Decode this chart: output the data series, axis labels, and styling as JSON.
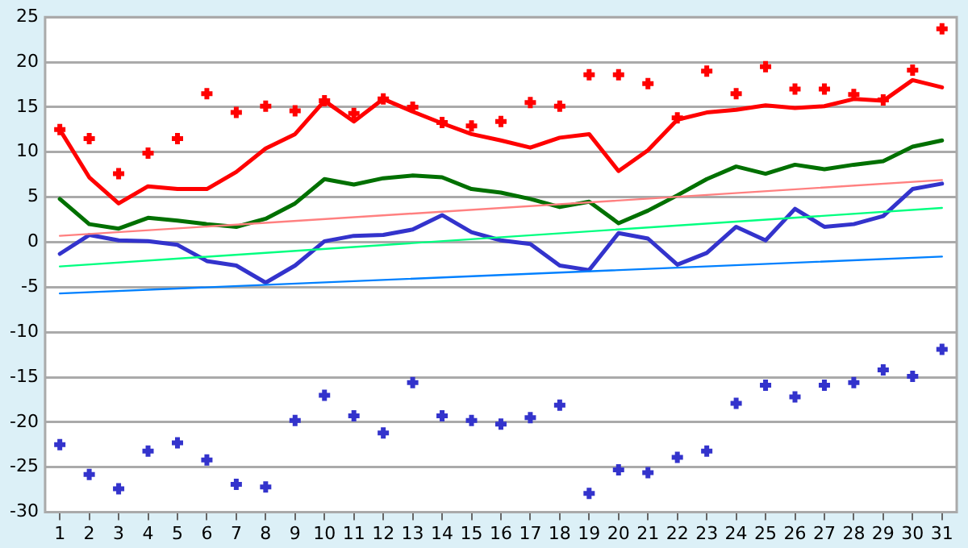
{
  "chart_data": {
    "type": "line",
    "x": [
      1,
      2,
      3,
      4,
      5,
      6,
      7,
      8,
      9,
      10,
      11,
      12,
      13,
      14,
      15,
      16,
      17,
      18,
      19,
      20,
      21,
      22,
      23,
      24,
      25,
      26,
      27,
      28,
      29,
      30,
      31
    ],
    "xlim": [
      0.5,
      31.5
    ],
    "xticks": [
      1,
      2,
      3,
      4,
      5,
      6,
      7,
      8,
      9,
      10,
      11,
      12,
      13,
      14,
      15,
      16,
      17,
      18,
      19,
      20,
      21,
      22,
      23,
      24,
      25,
      26,
      27,
      28,
      29,
      30,
      31
    ],
    "ylim": [
      -30,
      25
    ],
    "yticks": [
      -30,
      -25,
      -20,
      -15,
      -10,
      -5,
      0,
      5,
      10,
      15,
      20,
      25
    ],
    "grid": "y",
    "legend": false,
    "marker": "none",
    "line_style": "solid",
    "series": [
      {
        "type": "scatter",
        "marker": "cross",
        "color": "#ff0000",
        "values": [
          12.5,
          11.5,
          7.6,
          9.9,
          11.5,
          16.5,
          14.4,
          15.1,
          14.6,
          15.7,
          14.3,
          15.9,
          15.0,
          13.3,
          12.9,
          13.4,
          15.5,
          15.1,
          18.6,
          18.6,
          17.6,
          13.8,
          19.0,
          16.5,
          19.5,
          17.0,
          17.0,
          16.4,
          15.8,
          19.1,
          23.7
        ]
      },
      {
        "type": "scatter",
        "marker": "cross",
        "color": "#3333cc",
        "values": [
          -22.5,
          -25.8,
          -27.4,
          -23.2,
          -22.3,
          -24.2,
          -26.9,
          -27.2,
          -19.8,
          -17.0,
          -19.3,
          -21.2,
          -15.6,
          -19.3,
          -19.8,
          -20.2,
          -19.5,
          -18.1,
          -27.9,
          -25.3,
          -25.6,
          -23.9,
          -23.2,
          -17.9,
          -15.9,
          -17.2,
          -15.9,
          -15.6,
          -14.2,
          -14.9,
          -11.9
        ]
      },
      {
        "type": "line",
        "color": "#ff8080",
        "values": [
          0.7,
          null,
          null,
          null,
          null,
          null,
          null,
          null,
          null,
          null,
          null,
          null,
          null,
          null,
          null,
          null,
          null,
          null,
          null,
          null,
          null,
          null,
          null,
          null,
          null,
          null,
          null,
          null,
          null,
          null,
          6.9
        ]
      },
      {
        "type": "line",
        "color": "#00ff80",
        "values": [
          -2.7,
          null,
          null,
          null,
          null,
          null,
          null,
          null,
          null,
          null,
          null,
          null,
          null,
          null,
          null,
          null,
          null,
          null,
          null,
          null,
          null,
          null,
          null,
          null,
          null,
          null,
          null,
          null,
          null,
          null,
          3.8
        ]
      },
      {
        "type": "line",
        "color": "#0080ff",
        "values": [
          -5.7,
          null,
          null,
          null,
          null,
          null,
          null,
          null,
          null,
          null,
          null,
          null,
          null,
          null,
          null,
          null,
          null,
          null,
          null,
          null,
          null,
          null,
          null,
          null,
          null,
          null,
          null,
          null,
          null,
          null,
          -1.6
        ]
      },
      {
        "color": "#ff0000",
        "values": [
          12.5,
          7.2,
          4.3,
          6.2,
          5.9,
          5.9,
          7.8,
          10.4,
          12.0,
          15.7,
          13.4,
          15.9,
          14.5,
          13.2,
          12.0,
          11.3,
          10.5,
          11.6,
          12.0,
          7.9,
          10.2,
          13.6,
          14.4,
          14.7,
          15.2,
          14.9,
          15.1,
          15.9,
          15.7,
          18.0,
          17.2
        ]
      },
      {
        "color": "#007000",
        "values": [
          4.8,
          2.0,
          1.5,
          2.7,
          2.4,
          2.0,
          1.7,
          2.6,
          4.3,
          7.0,
          6.4,
          7.1,
          7.4,
          7.2,
          5.9,
          5.5,
          4.8,
          3.9,
          4.5,
          2.1,
          3.5,
          5.2,
          7.0,
          8.4,
          7.6,
          8.6,
          8.1,
          8.6,
          9.0,
          10.6,
          11.3
        ]
      },
      {
        "color": "#3333cc",
        "values": [
          -1.3,
          0.8,
          0.2,
          0.1,
          -0.3,
          -2.1,
          -2.6,
          -4.5,
          -2.6,
          0.1,
          0.7,
          0.8,
          1.4,
          3.0,
          1.1,
          0.2,
          -0.2,
          -2.6,
          -3.1,
          1.0,
          0.4,
          -2.5,
          -1.2,
          1.7,
          0.2,
          3.7,
          1.7,
          2.0,
          2.9,
          5.9,
          6.5
        ]
      }
    ]
  }
}
